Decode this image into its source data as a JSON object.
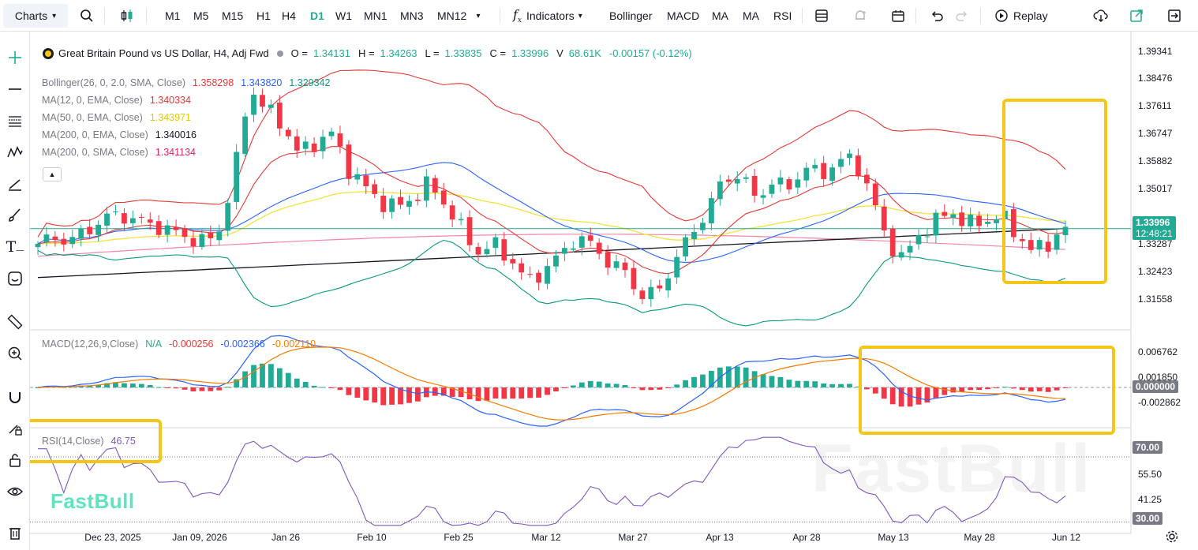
{
  "toolbar": {
    "charts_label": "Charts",
    "intervals": [
      "M1",
      "M5",
      "M15",
      "H1",
      "H4",
      "D1",
      "W1",
      "MN1",
      "MN3",
      "MN12"
    ],
    "active_interval": "D1",
    "indicators_label": "Indicators",
    "quick_indicators": [
      "Bollinger",
      "MACD",
      "MA",
      "MA",
      "RSI"
    ],
    "replay_label": "Replay"
  },
  "symbol": {
    "title": "Great Britain Pound vs US Dollar, H4, Adj Fwd",
    "o_label": "O =",
    "o": "1.34131",
    "h_label": "H =",
    "h": "1.34263",
    "l_label": "L =",
    "l": "1.33835",
    "c_label": "C =",
    "c": "1.33996",
    "v_label": "V",
    "v": "68.61K",
    "change": "-0.00157 (-0.12%)"
  },
  "indicators": [
    {
      "label": "Bollinger(26, 0, 2.0, SMA, Close)",
      "values": [
        "1.358298",
        "1.343820",
        "1.329342"
      ],
      "colors": [
        "#e53935",
        "#2962ff",
        "#089981"
      ]
    },
    {
      "label": "MA(12, 0, EMA, Close)",
      "values": [
        "1.340334"
      ],
      "colors": [
        "#e53935"
      ]
    },
    {
      "label": "MA(50, 0, EMA, Close)",
      "values": [
        "1.343971"
      ],
      "colors": [
        "#f2e33b"
      ]
    },
    {
      "label": "MA(200, 0, EMA, Close)",
      "values": [
        "1.340016"
      ],
      "colors": [
        "#131722"
      ]
    },
    {
      "label": "MA(200, 0, SMA, Close)",
      "values": [
        "1.341134"
      ],
      "colors": [
        "#e91e63"
      ]
    }
  ],
  "macd_legend": {
    "label": "MACD(12,26,9,Close)",
    "na": "N/A",
    "values": [
      "-0.000256",
      "-0.002366",
      "-0.002110"
    ],
    "colors": [
      "#e53935",
      "#2962ff",
      "#f57c00"
    ]
  },
  "rsi_legend": {
    "label": "RSI(14,Close)",
    "value": "46.75"
  },
  "price_axis": [
    "1.39341",
    "1.38476",
    "1.37611",
    "1.36747",
    "1.35882",
    "1.35017",
    "1.33287",
    "1.32423",
    "1.31558"
  ],
  "current_price": {
    "price": "1.33996",
    "countdown": "12:48:21"
  },
  "macd_axis": [
    "0.006762",
    "0.001850",
    "-0.002862"
  ],
  "macd_zero_badge": "0.000000",
  "rsi_axis": [
    "55.50",
    "41.25"
  ],
  "rsi_badges": [
    "70.00",
    "30.00"
  ],
  "time_axis": [
    "Dec 23, 2025",
    "Jan 09, 2026",
    "Jan 26",
    "Feb 10",
    "Feb 25",
    "Mar 12",
    "Mar 27",
    "Apr 13",
    "Apr 28",
    "May 13",
    "May 28",
    "Jun 12"
  ],
  "watermark": "FastBull",
  "colors": {
    "up": "#22ab94",
    "down": "#f23645",
    "highlight": "#f5c518",
    "accent": "#22ab94"
  },
  "chart_data": {
    "type": "candlestick",
    "title": "Great Britain Pound vs US Dollar, H4, Adj Fwd",
    "x_labels": [
      "Dec 23, 2025",
      "Jan 09, 2026",
      "Jan 26",
      "Feb 10",
      "Feb 25",
      "Mar 12",
      "Mar 27",
      "Apr 13",
      "Apr 28",
      "May 13",
      "May 28",
      "Jun 12"
    ],
    "close_path": [
      1.3355,
      1.3372,
      1.3365,
      1.3392,
      1.343,
      1.3442,
      1.3425,
      1.3412,
      1.3395,
      1.3378,
      1.336,
      1.3378,
      1.3552,
      1.382,
      1.3752,
      1.3708,
      1.362,
      1.3655,
      1.3682,
      1.358,
      1.3525,
      1.348,
      1.3462,
      1.349,
      1.3535,
      1.347,
      1.3395,
      1.333,
      1.3352,
      1.3308,
      1.324,
      1.3275,
      1.332,
      1.3375,
      1.335,
      1.33,
      1.327,
      1.32,
      1.3212,
      1.33,
      1.338,
      1.345,
      1.3545,
      1.356,
      1.3492,
      1.3535,
      1.3522,
      1.358,
      1.356,
      1.3595,
      1.361,
      1.351,
      1.337,
      1.331,
      1.338,
      1.342,
      1.3452,
      1.341,
      1.3422,
      1.344,
      1.3385,
      1.333,
      1.336,
      1.34
    ],
    "rsi": {
      "overbought": 70.0,
      "oversold": 30.0,
      "last": 46.75
    },
    "macd": {
      "macd": -0.002366,
      "signal": -0.00211,
      "hist": -0.000256
    }
  }
}
